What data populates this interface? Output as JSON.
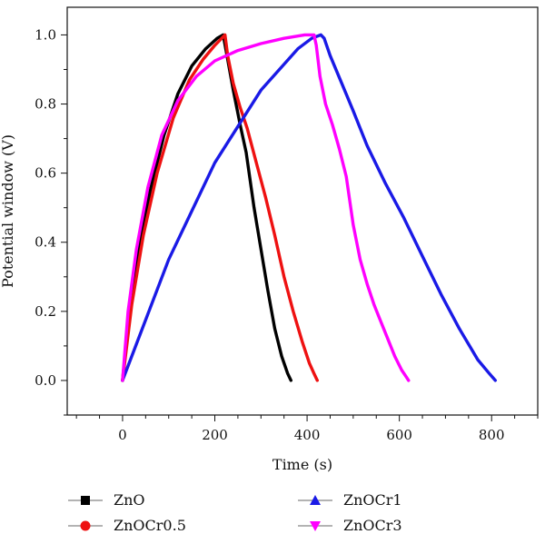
{
  "chart_data": {
    "type": "line",
    "title": "",
    "xlabel": "Time (s)",
    "ylabel": "Potential window (V)",
    "xlim": [
      -120,
      900
    ],
    "ylim": [
      -0.1,
      1.08
    ],
    "xticks": [
      0,
      200,
      400,
      600,
      800
    ],
    "yticks": [
      0.0,
      0.2,
      0.4,
      0.6,
      0.8,
      1.0
    ],
    "xtick_labels": [
      "0",
      "200",
      "400",
      "600",
      "800"
    ],
    "ytick_labels": [
      "0.0",
      "0.2",
      "0.4",
      "0.6",
      "0.8",
      "1.0"
    ],
    "grid": false,
    "legend_position": "bottom",
    "series": [
      {
        "name": "ZnO",
        "color": "#000000",
        "marker": "square",
        "points": [
          [
            0,
            0.0
          ],
          [
            15,
            0.2
          ],
          [
            35,
            0.38
          ],
          [
            60,
            0.55
          ],
          [
            90,
            0.71
          ],
          [
            120,
            0.83
          ],
          [
            150,
            0.91
          ],
          [
            180,
            0.96
          ],
          [
            205,
            0.99
          ],
          [
            218,
            1.0
          ],
          [
            225,
            0.95
          ],
          [
            240,
            0.84
          ],
          [
            255,
            0.74
          ],
          [
            268,
            0.66
          ],
          [
            285,
            0.5
          ],
          [
            300,
            0.38
          ],
          [
            315,
            0.26
          ],
          [
            330,
            0.15
          ],
          [
            345,
            0.07
          ],
          [
            358,
            0.02
          ],
          [
            365,
            0.0
          ]
        ]
      },
      {
        "name": "ZnOCr0.5",
        "color": "#ee1111",
        "marker": "circle",
        "points": [
          [
            0,
            0.0
          ],
          [
            20,
            0.22
          ],
          [
            45,
            0.42
          ],
          [
            75,
            0.6
          ],
          [
            110,
            0.76
          ],
          [
            145,
            0.87
          ],
          [
            175,
            0.93
          ],
          [
            200,
            0.97
          ],
          [
            215,
            0.99
          ],
          [
            222,
            1.0
          ],
          [
            228,
            0.94
          ],
          [
            240,
            0.86
          ],
          [
            255,
            0.79
          ],
          [
            270,
            0.73
          ],
          [
            290,
            0.63
          ],
          [
            310,
            0.53
          ],
          [
            330,
            0.42
          ],
          [
            350,
            0.3
          ],
          [
            370,
            0.2
          ],
          [
            390,
            0.11
          ],
          [
            405,
            0.05
          ],
          [
            415,
            0.02
          ],
          [
            422,
            0.0
          ]
        ]
      },
      {
        "name": "ZnOCr1",
        "color": "#1a1ae6",
        "marker": "triangle-up",
        "points": [
          [
            0,
            0.0
          ],
          [
            100,
            0.35
          ],
          [
            200,
            0.63
          ],
          [
            300,
            0.84
          ],
          [
            380,
            0.96
          ],
          [
            410,
            0.99
          ],
          [
            430,
            1.0
          ],
          [
            437,
            0.99
          ],
          [
            450,
            0.94
          ],
          [
            475,
            0.86
          ],
          [
            500,
            0.78
          ],
          [
            530,
            0.68
          ],
          [
            570,
            0.57
          ],
          [
            610,
            0.47
          ],
          [
            650,
            0.36
          ],
          [
            690,
            0.25
          ],
          [
            730,
            0.15
          ],
          [
            770,
            0.06
          ],
          [
            795,
            0.02
          ],
          [
            808,
            0.0
          ]
        ]
      },
      {
        "name": "ZnOCr3",
        "color": "#ff00ff",
        "marker": "triangle-down",
        "points": [
          [
            0,
            0.0
          ],
          [
            12,
            0.2
          ],
          [
            30,
            0.38
          ],
          [
            55,
            0.56
          ],
          [
            85,
            0.71
          ],
          [
            120,
            0.81
          ],
          [
            160,
            0.88
          ],
          [
            200,
            0.925
          ],
          [
            250,
            0.955
          ],
          [
            300,
            0.975
          ],
          [
            350,
            0.99
          ],
          [
            395,
            1.0
          ],
          [
            415,
            1.0
          ],
          [
            420,
            0.97
          ],
          [
            428,
            0.88
          ],
          [
            440,
            0.8
          ],
          [
            455,
            0.74
          ],
          [
            470,
            0.67
          ],
          [
            485,
            0.59
          ],
          [
            500,
            0.45
          ],
          [
            515,
            0.35
          ],
          [
            530,
            0.28
          ],
          [
            545,
            0.22
          ],
          [
            560,
            0.17
          ],
          [
            575,
            0.12
          ],
          [
            590,
            0.07
          ],
          [
            605,
            0.03
          ],
          [
            615,
            0.01
          ],
          [
            620,
            0.0
          ]
        ]
      }
    ]
  }
}
